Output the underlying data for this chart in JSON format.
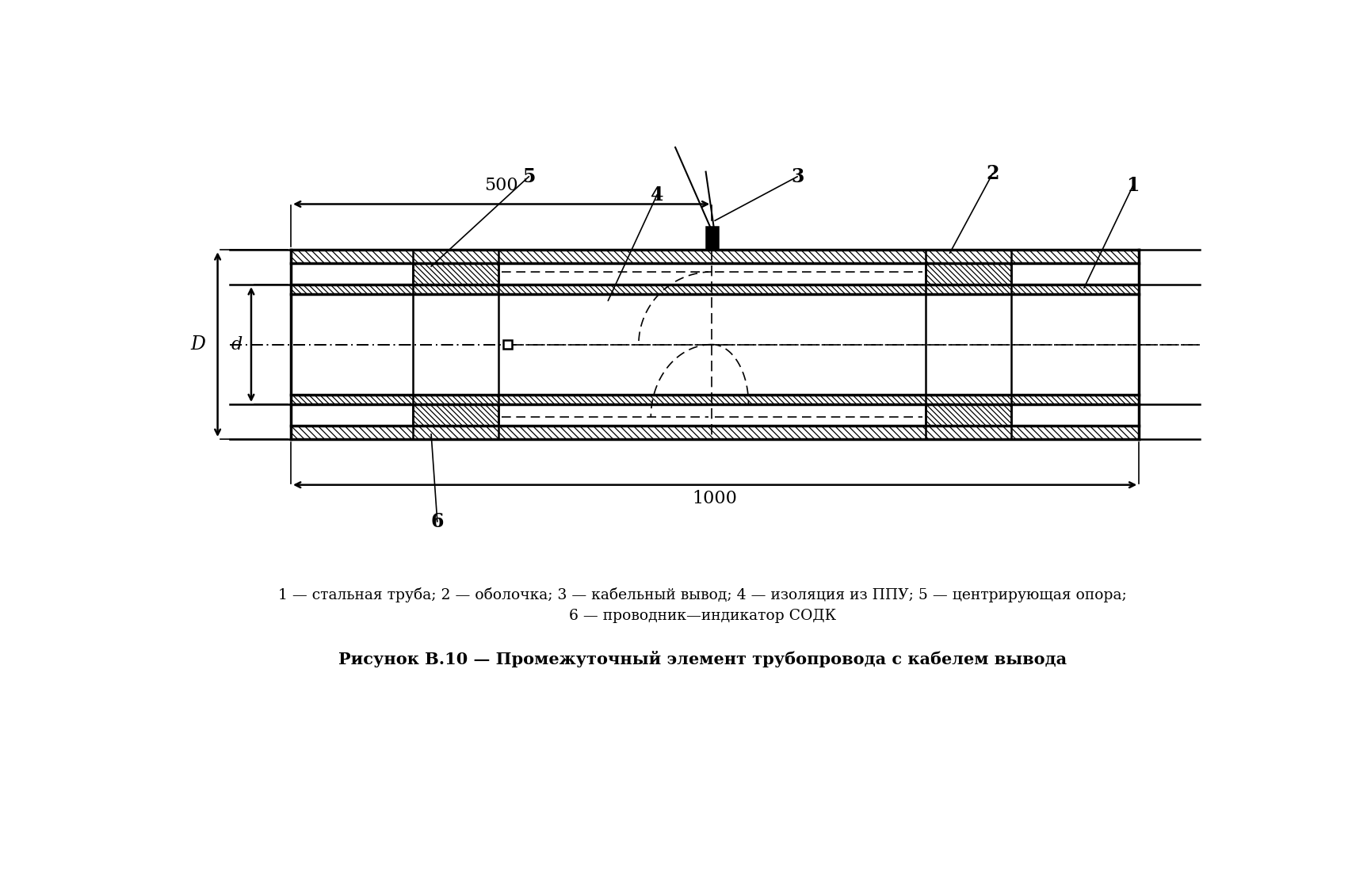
{
  "title": "Рисунок В.10 — Промежуточный элемент трубопровода с кабелем вывода",
  "legend_line1": "1 — стальная труба; 2 — оболочка; 3 — кабельный вывод; 4 — изоляция из ППУ; 5 — центрирующая опора;",
  "legend_line2": "6 — проводник—индикатор СОДК",
  "dim_500": "500",
  "dim_1000": "1000",
  "label_D": "D",
  "label_d": "d",
  "bg_color": "#ffffff",
  "line_color": "#000000"
}
